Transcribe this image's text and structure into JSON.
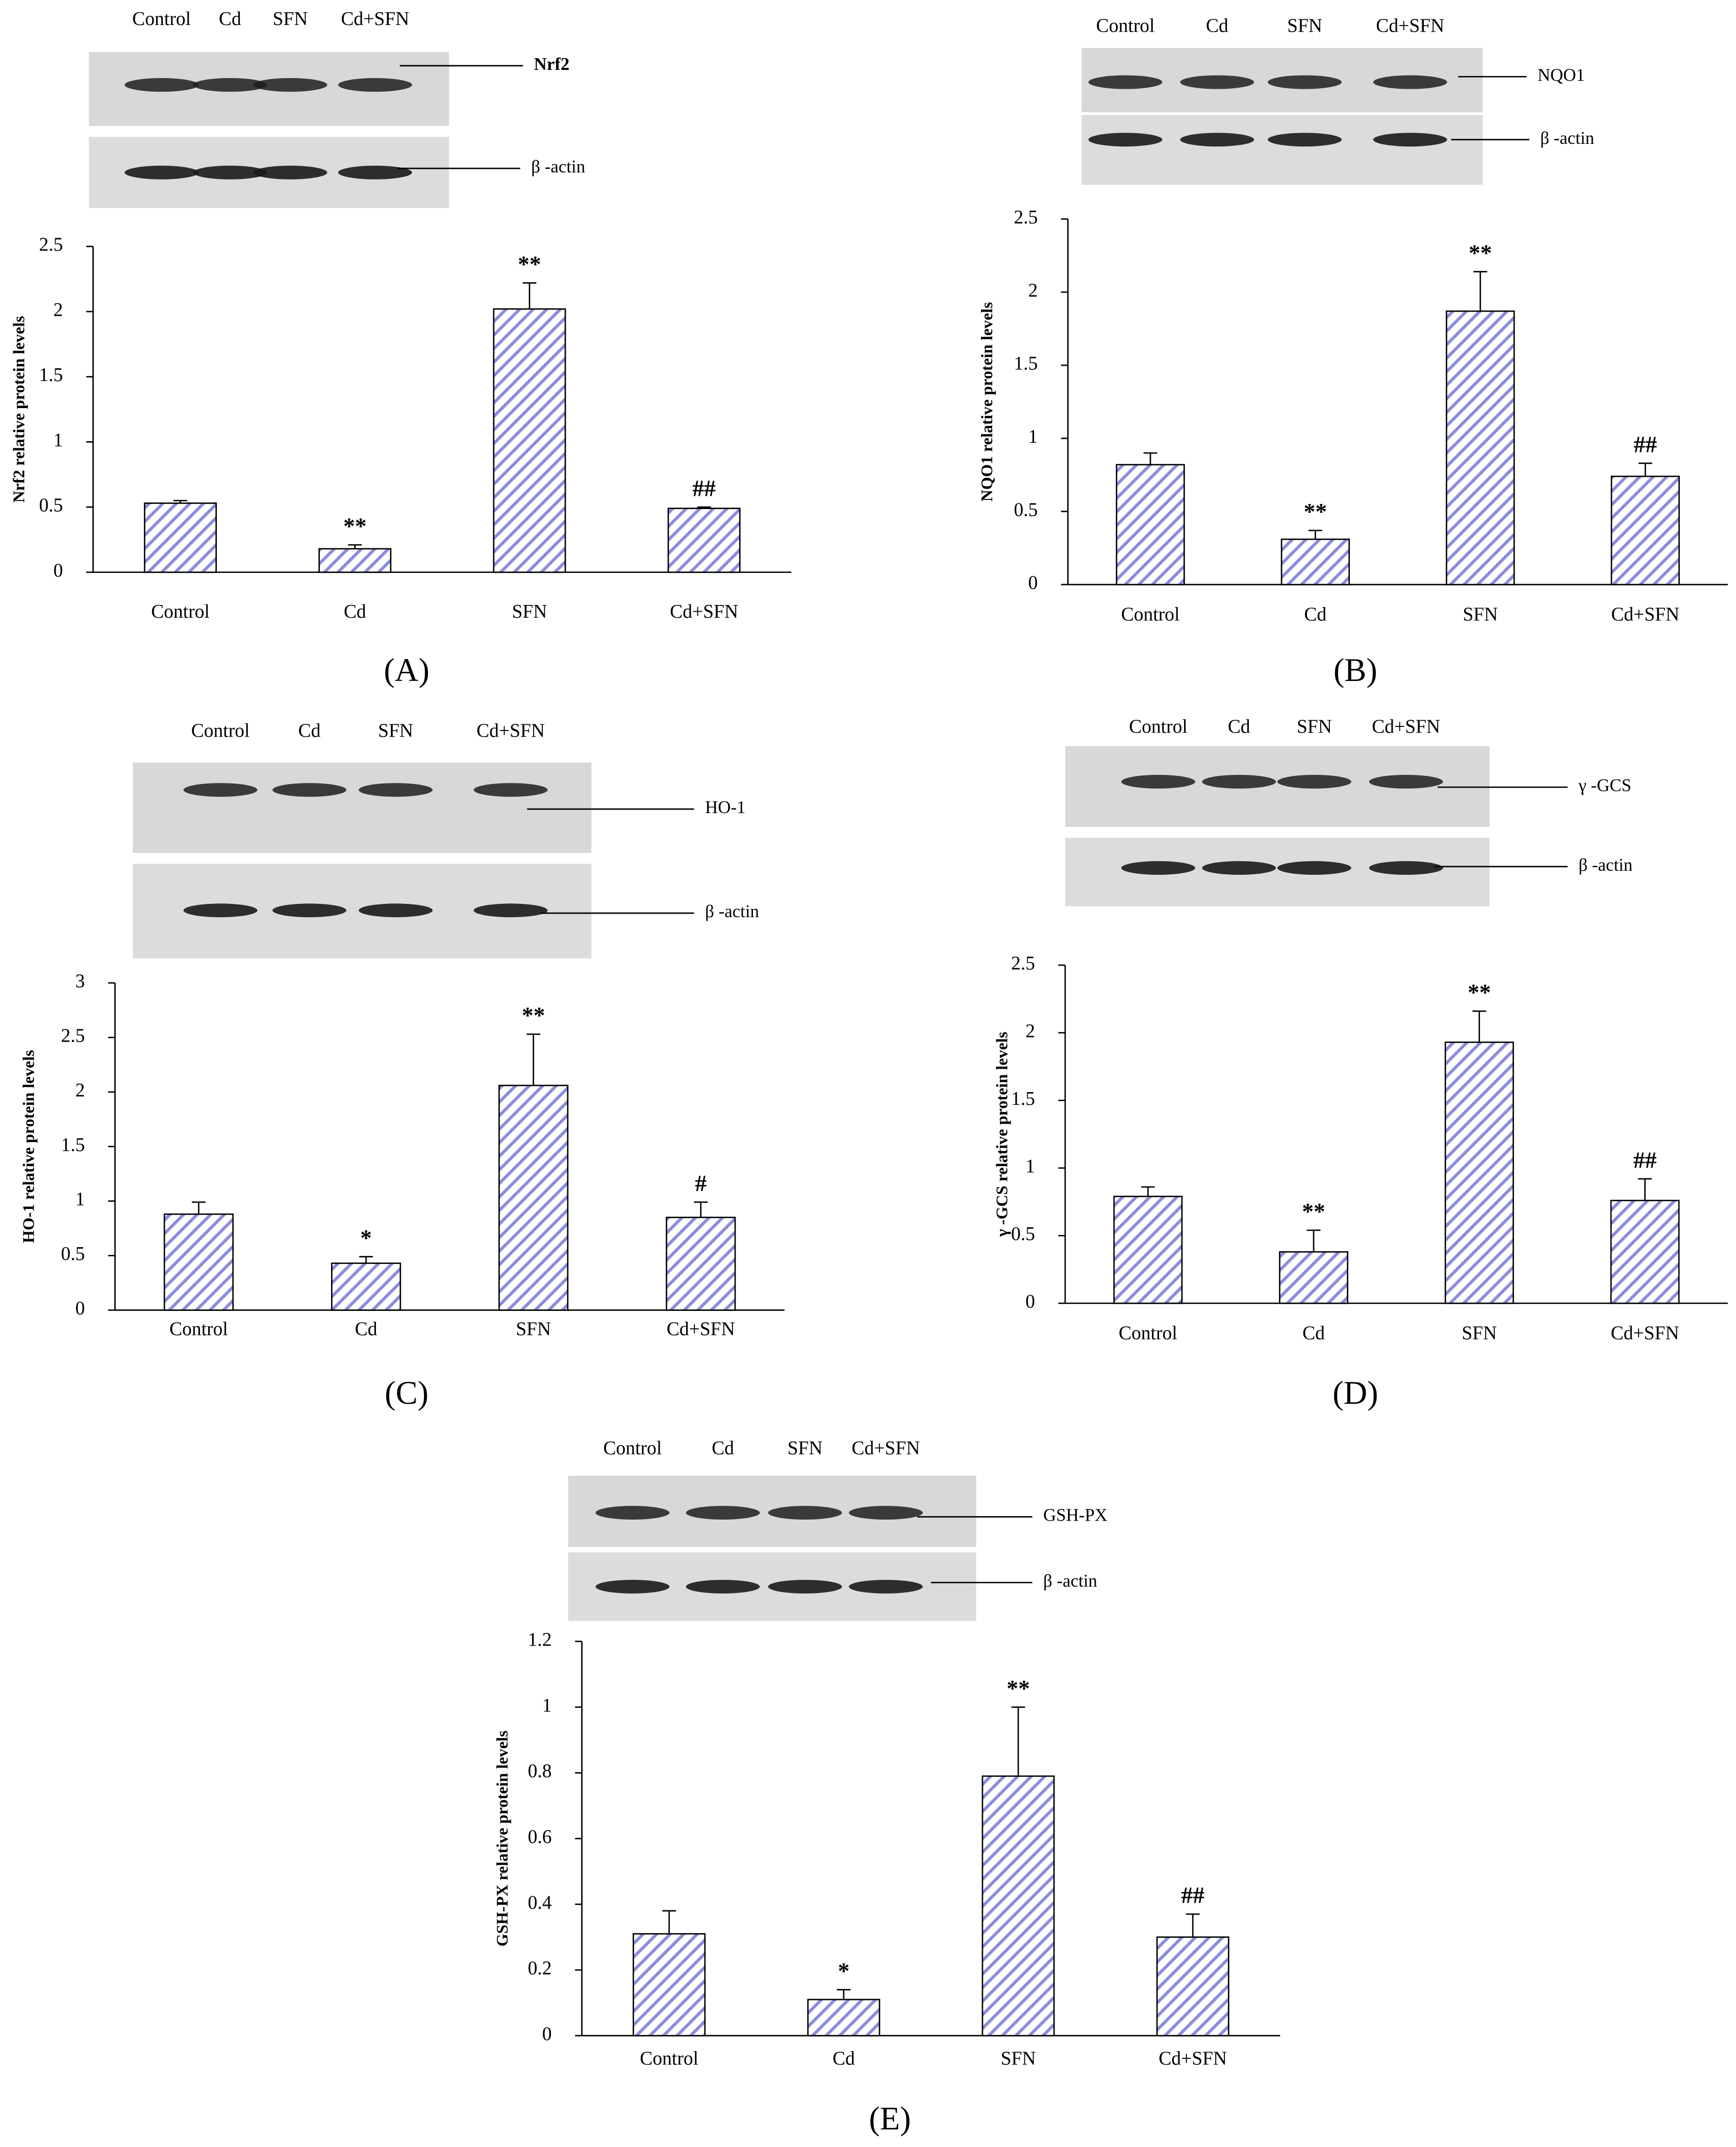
{
  "chart_data": [
    {
      "type": "bar",
      "panel_label": "(A)",
      "lanes": [
        "Control",
        "Cd",
        "SFN",
        "Cd+SFN"
      ],
      "bands": [
        "Nrf2",
        "β -actin"
      ],
      "y_label": "Nrf2 relative protein levels",
      "categories": [
        "Control",
        "Cd",
        "SFN",
        "Cd+SFN"
      ],
      "values": [
        0.53,
        0.18,
        2.02,
        0.49
      ],
      "errors": [
        0.02,
        0.03,
        0.2,
        0.01
      ],
      "annotations": [
        null,
        "**",
        "**",
        "##"
      ],
      "color": "#8c8cdc",
      "ylim": [
        0,
        2.5
      ],
      "yticks": [
        0,
        0.5,
        1,
        1.5,
        2,
        2.5
      ]
    },
    {
      "type": "bar",
      "panel_label": "(B)",
      "lanes": [
        "Control",
        "Cd",
        "SFN",
        "Cd+SFN"
      ],
      "bands": [
        "NQO1",
        "β -actin"
      ],
      "y_label": "NQO1 relative protein levels",
      "categories": [
        "Control",
        "Cd",
        "SFN",
        "Cd+SFN"
      ],
      "values": [
        0.82,
        0.31,
        1.87,
        0.74
      ],
      "errors": [
        0.08,
        0.06,
        0.27,
        0.09
      ],
      "annotations": [
        null,
        "**",
        "**",
        "##"
      ],
      "color": "#8c8cdc",
      "ylim": [
        0,
        2.5
      ],
      "yticks": [
        0,
        0.5,
        1,
        1.5,
        2,
        2.5
      ]
    },
    {
      "type": "bar",
      "panel_label": "(C)",
      "lanes": [
        "Control",
        "Cd",
        "SFN",
        "Cd+SFN"
      ],
      "bands": [
        "HO-1",
        "β -actin"
      ],
      "y_label": "HO-1 relative protein levels",
      "categories": [
        "Control",
        "Cd",
        "SFN",
        "Cd+SFN"
      ],
      "values": [
        0.88,
        0.43,
        2.06,
        0.85
      ],
      "errors": [
        0.11,
        0.06,
        0.47,
        0.14
      ],
      "annotations": [
        null,
        "*",
        "**",
        "#"
      ],
      "color": "#8c8cdc",
      "ylim": [
        0,
        3
      ],
      "yticks": [
        0,
        0.5,
        1,
        1.5,
        2,
        2.5,
        3
      ]
    },
    {
      "type": "bar",
      "panel_label": "(D)",
      "lanes": [
        "Control",
        "Cd",
        "SFN",
        "Cd+SFN"
      ],
      "bands": [
        "γ -GCS",
        "β -actin"
      ],
      "y_label": "γ -GCS relative protein levels",
      "categories": [
        "Control",
        "Cd",
        "SFN",
        "Cd+SFN"
      ],
      "values": [
        0.79,
        0.38,
        1.93,
        0.76
      ],
      "errors": [
        0.07,
        0.16,
        0.23,
        0.16
      ],
      "annotations": [
        null,
        "**",
        "**",
        "##"
      ],
      "color": "#8c8cdc",
      "ylim": [
        0,
        2.5
      ],
      "yticks": [
        0,
        0.5,
        1,
        1.5,
        2,
        2.5
      ]
    },
    {
      "type": "bar",
      "panel_label": "(E)",
      "lanes": [
        "Control",
        "Cd",
        "SFN",
        "Cd+SFN"
      ],
      "bands": [
        "GSH-PX",
        "β -actin"
      ],
      "y_label": "GSH-PX relative protein levels",
      "categories": [
        "Control",
        "Cd",
        "SFN",
        "Cd+SFN"
      ],
      "values": [
        0.31,
        0.11,
        0.79,
        0.3
      ],
      "errors": [
        0.07,
        0.03,
        0.21,
        0.07
      ],
      "annotations": [
        null,
        "*",
        "**",
        "##"
      ],
      "color": "#8c8cdc",
      "ylim": [
        0,
        1.2
      ],
      "yticks": [
        0,
        0.2,
        0.4,
        0.6,
        0.8,
        1,
        1.2
      ]
    }
  ]
}
